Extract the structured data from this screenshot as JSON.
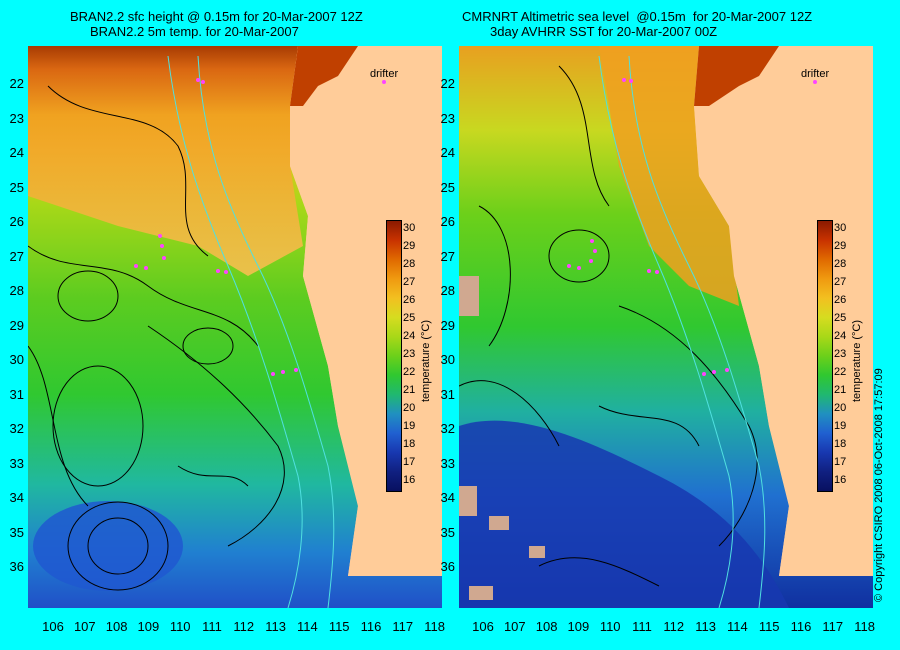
{
  "left": {
    "title_line1": "BRAN2.2 sfc height @ 0.15m for 20-Mar-2007 12Z",
    "title_line2": "BRAN2.2 5m temp. for 20-Mar-2007",
    "drifter_label": "drifter"
  },
  "right": {
    "title_line1": "CMRNRT Altimetric sea level  @0.15m  for 20-Mar-2007 12Z",
    "title_line2": "3day AVHRR SST for 20-Mar-2007 00Z",
    "drifter_label": "drifter"
  },
  "latitude_labels": [
    "22",
    "23",
    "24",
    "25",
    "26",
    "27",
    "28",
    "29",
    "30",
    "31",
    "32",
    "33",
    "34",
    "35",
    "36"
  ],
  "longitude_labels": [
    "106",
    "107",
    "108",
    "109",
    "110",
    "111",
    "112",
    "113",
    "114",
    "115",
    "116",
    "117",
    "118"
  ],
  "colorbar": {
    "title": "temperature (°C)",
    "ticks": [
      "30",
      "29",
      "28",
      "27",
      "26",
      "25",
      "24",
      "23",
      "22",
      "21",
      "20",
      "19",
      "18",
      "17",
      "16"
    ],
    "colors": [
      "#8b1a00",
      "#c83200",
      "#e06a00",
      "#f09a10",
      "#f2c020",
      "#d6dc20",
      "#a8d818",
      "#6cd01a",
      "#30c830",
      "#20b870",
      "#2090c0",
      "#2060d0",
      "#1838b0",
      "#102080",
      "#081060"
    ]
  },
  "copyright": "© Copyright CSIRO 2008    06-Oct-2008 17:57:09"
}
